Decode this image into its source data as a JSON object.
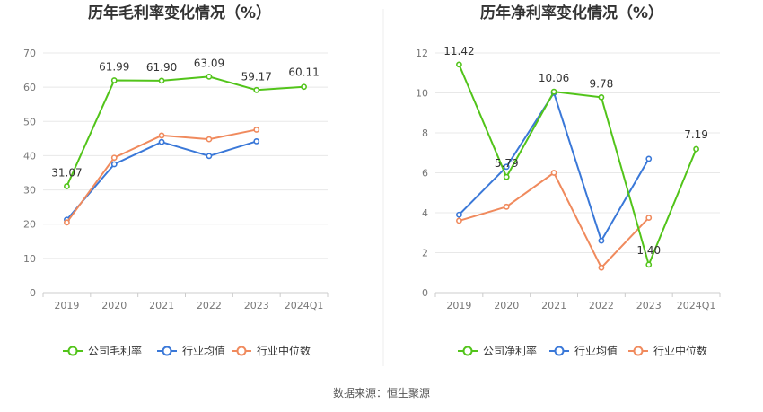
{
  "chart_data": [
    {
      "type": "line",
      "title": "历年毛利率变化情况（%）",
      "categories": [
        "2019",
        "2020",
        "2021",
        "2022",
        "2023",
        "2024Q1"
      ],
      "ylim": [
        0,
        70
      ],
      "yticks": [
        0,
        10,
        20,
        30,
        40,
        50,
        60,
        70
      ],
      "grid": true,
      "legend": "bottom",
      "series": [
        {
          "name": "公司毛利率",
          "color": "#52c41a",
          "values": [
            31.07,
            61.99,
            61.9,
            63.09,
            59.17,
            60.11
          ],
          "labels": [
            "31.07",
            "61.99",
            "61.90",
            "63.09",
            "59.17",
            "60.11"
          ]
        },
        {
          "name": "行业均值",
          "color": "#3a78d8",
          "values": [
            21.3,
            37.5,
            44.0,
            39.9,
            44.2,
            null
          ]
        },
        {
          "name": "行业中位数",
          "color": "#f08a5d",
          "values": [
            20.5,
            39.4,
            45.9,
            44.8,
            47.6,
            null
          ]
        }
      ]
    },
    {
      "type": "line",
      "title": "历年净利率变化情况（%）",
      "categories": [
        "2019",
        "2020",
        "2021",
        "2022",
        "2023",
        "2024Q1"
      ],
      "ylim": [
        0,
        12
      ],
      "yticks": [
        0,
        2,
        4,
        6,
        8,
        10,
        12
      ],
      "grid": true,
      "legend": "bottom",
      "series": [
        {
          "name": "公司净利率",
          "color": "#52c41a",
          "values": [
            11.42,
            5.79,
            10.06,
            9.78,
            1.4,
            7.19
          ],
          "labels": [
            "11.42",
            "5.79",
            "10.06",
            "9.78",
            "1.40",
            "7.19"
          ]
        },
        {
          "name": "行业均值",
          "color": "#3a78d8",
          "values": [
            3.9,
            6.3,
            10.0,
            2.6,
            6.7,
            null
          ]
        },
        {
          "name": "行业中位数",
          "color": "#f08a5d",
          "values": [
            3.6,
            4.3,
            6.0,
            1.25,
            3.75,
            null
          ]
        }
      ]
    }
  ],
  "source": "数据来源：恒生聚源"
}
